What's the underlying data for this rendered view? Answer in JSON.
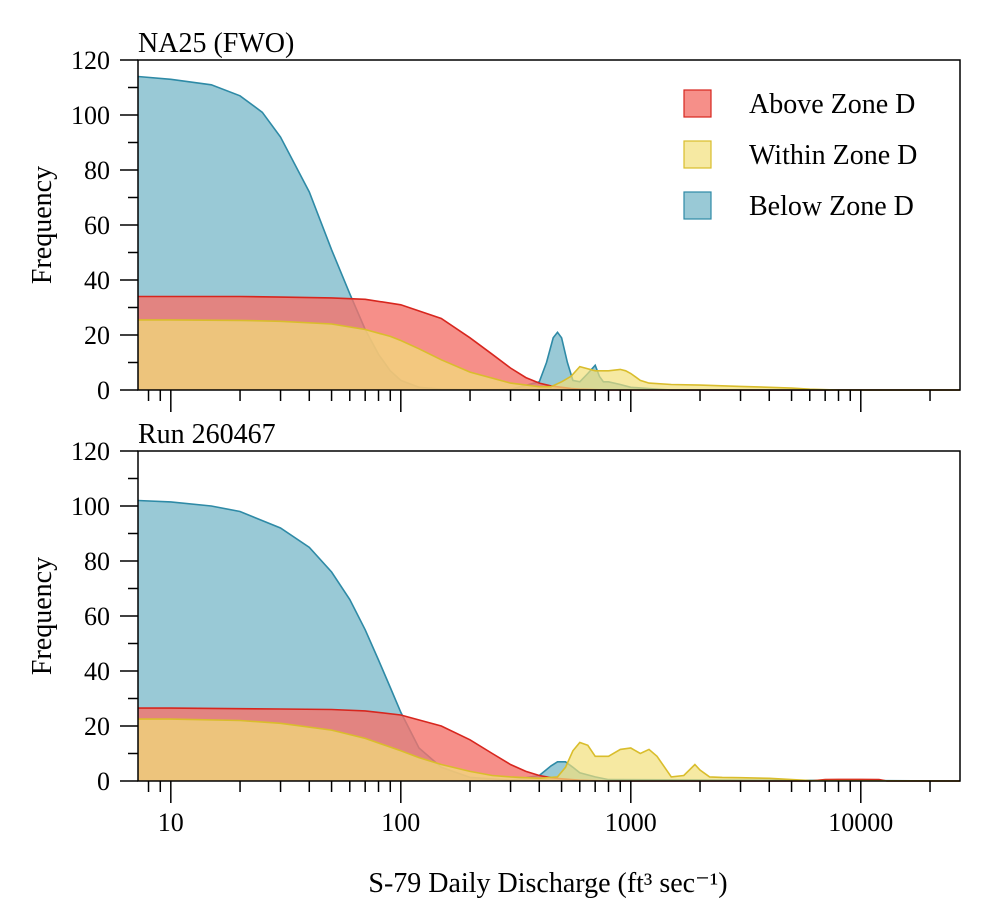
{
  "colors": {
    "above": "#f4736b",
    "above_line": "#d7261e",
    "within": "#f2e07a",
    "within_line": "#d9bd2c",
    "below": "#87bfcf",
    "below_line": "#2e8aa6",
    "overlap_line": "#f07f2d"
  },
  "chart_data": {
    "type": "area",
    "xlabel": "S-79 Daily Discharge (ft³ sec⁻¹)",
    "xscale": "log",
    "xlim": [
      7.2,
      27000
    ],
    "x_tick_labels": [
      "10",
      "100",
      "1000",
      "10000"
    ],
    "legend": {
      "position": "top-right",
      "entries": [
        {
          "label": "Above Zone D",
          "key": "above"
        },
        {
          "label": "Within Zone D",
          "key": "within"
        },
        {
          "label": "Below Zone D",
          "key": "below"
        }
      ]
    },
    "panels": [
      {
        "title": "NA25 (FWO)",
        "ylabel": "Frequency",
        "ylim": [
          0,
          120
        ],
        "y_tick_labels": [
          "0",
          "20",
          "40",
          "60",
          "80",
          "100",
          "120"
        ],
        "series": [
          {
            "name": "Below Zone D",
            "key": "below",
            "x": [
              7.2,
              10,
              15,
              20,
              25,
              30,
              40,
              50,
              60,
              70,
              80,
              90,
              100,
              120,
              150,
              200,
              300,
              400,
              430,
              460,
              480,
              500,
              530,
              560,
              600,
              650,
              700,
              730,
              760,
              800,
              900,
              1000,
              1200,
              1500,
              27000
            ],
            "y": [
              114,
              113,
              111,
              107,
              101,
              92,
              72,
              51,
              35,
              22,
              13,
              7,
              3.5,
              1,
              0.3,
              0.1,
              0.2,
              3,
              10,
              19,
              21,
              19,
              10,
              3.5,
              3,
              6,
              9,
              5,
              3,
              3,
              2,
              1,
              0.5,
              0,
              0
            ]
          },
          {
            "name": "Above Zone D",
            "key": "above",
            "x": [
              7.2,
              10,
              20,
              30,
              50,
              70,
              100,
              150,
              200,
              250,
              300,
              350,
              400,
              450,
              500,
              550,
              600,
              700,
              800,
              27000
            ],
            "y": [
              34,
              34,
              34,
              33.8,
              33.5,
              33,
              31,
              26,
              19,
              13,
              8,
              4.5,
              2.5,
              1.5,
              1,
              0.5,
              0.3,
              0.1,
              0,
              0
            ]
          },
          {
            "name": "Within Zone D",
            "key": "within",
            "x": [
              7.2,
              10,
              20,
              30,
              50,
              70,
              90,
              100,
              120,
              150,
              200,
              300,
              400,
              450,
              500,
              550,
              600,
              700,
              800,
              900,
              950,
              1000,
              1100,
              1200,
              1500,
              2000,
              3000,
              4000,
              5000,
              6000,
              7000,
              8000,
              27000
            ],
            "y": [
              25.5,
              25.5,
              25.3,
              25,
              24,
              22,
              19.5,
              18,
              15,
              11,
              6.5,
              2.5,
              1.2,
              1.2,
              3,
              5,
              8.5,
              7,
              7,
              7.5,
              7,
              6,
              3.5,
              2.5,
              2,
              1.8,
              1.3,
              1,
              0.7,
              0.3,
              0.1,
              0,
              0
            ]
          }
        ]
      },
      {
        "title": "Run 260467",
        "ylabel": "Frequency",
        "ylim": [
          0,
          120
        ],
        "y_tick_labels": [
          "0",
          "20",
          "40",
          "60",
          "80",
          "100",
          "120"
        ],
        "series": [
          {
            "name": "Below Zone D",
            "key": "below",
            "x": [
              7.2,
              10,
              15,
              20,
              30,
              40,
              50,
              60,
              70,
              80,
              90,
              100,
              120,
              150,
              200,
              300,
              400,
              450,
              480,
              520,
              560,
              600,
              700,
              800,
              27000
            ],
            "y": [
              102,
              101.5,
              100,
              98,
              92,
              85,
              76,
              66,
              55,
              44,
              34,
              25,
              12,
              5,
              1.3,
              0.3,
              2,
              5.5,
              7,
              7,
              5,
              3,
              1.5,
              0.5,
              0
            ]
          },
          {
            "name": "Above Zone D",
            "key": "above",
            "x": [
              7.2,
              10,
              20,
              30,
              50,
              70,
              100,
              150,
              200,
              250,
              300,
              350,
              400,
              450,
              500,
              550,
              600,
              700,
              800,
              6000,
              7000,
              8000,
              10000,
              12000,
              13000,
              27000
            ],
            "y": [
              26.5,
              26.5,
              26.3,
              26.2,
              26,
              25.5,
              24,
              20,
              15,
              10,
              6,
              3.5,
              2,
              1.2,
              0.8,
              0.5,
              0.3,
              0.1,
              0,
              0,
              0.5,
              0.6,
              0.6,
              0.5,
              0,
              0
            ]
          },
          {
            "name": "Within Zone D",
            "key": "within",
            "x": [
              7.2,
              10,
              20,
              30,
              50,
              70,
              100,
              120,
              150,
              200,
              250,
              300,
              400,
              480,
              520,
              560,
              600,
              650,
              700,
              800,
              900,
              1000,
              1100,
              1200,
              1300,
              1500,
              1700,
              1900,
              2000,
              2200,
              2500,
              3000,
              4000,
              5000,
              6000,
              27000
            ],
            "y": [
              22.5,
              22.5,
              22,
              21,
              18.5,
              15.5,
              11,
              8.5,
              6,
              3.5,
              2,
              1.5,
              1,
              1.5,
              5,
              11,
              14,
              13,
              9,
              9,
              11.5,
              12,
              10,
              11.5,
              9,
              1.5,
              2,
              6,
              4,
              1.5,
              1.3,
              1.2,
              1,
              0.5,
              0.2,
              0
            ]
          }
        ]
      }
    ]
  }
}
